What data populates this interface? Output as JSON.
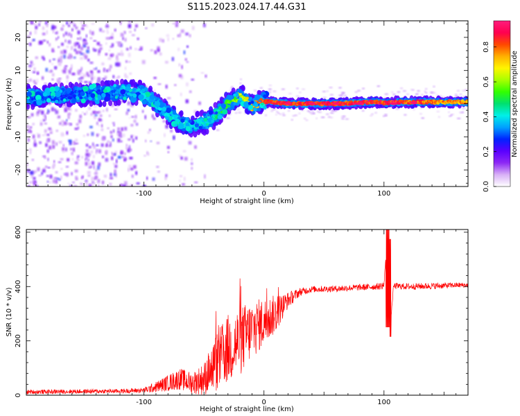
{
  "title": "S115.2023.024.17.44.G31",
  "chart_data": [
    {
      "type": "heatmap",
      "xlabel": "Height of straight line (km)",
      "ylabel": "Frequency (Hz)",
      "xlim": [
        -198,
        170
      ],
      "ylim": [
        -25,
        25
      ],
      "xticks": [
        -100,
        0,
        100
      ],
      "yticks": [
        -20,
        -10,
        0,
        10,
        20
      ],
      "colorbar": {
        "label": "Normalized spectral amplitude",
        "range": [
          0,
          0.95
        ],
        "ticks": [
          0.0,
          0.2,
          0.4,
          0.6,
          0.8
        ],
        "colormap": [
          "#ffffff",
          "#d8b0f6",
          "#8d28f5",
          "#5a00ff",
          "#0023ff",
          "#00a0ff",
          "#00f0e8",
          "#00e070",
          "#32ff00",
          "#a8ff00",
          "#fff500",
          "#ffb000",
          "#ff4800",
          "#ff0050",
          "#ff1d7c"
        ]
      },
      "ridge": {
        "x": [
          -198,
          -170,
          -140,
          -115,
          -100,
          -90,
          -80,
          -70,
          -62,
          -55,
          -48,
          -42,
          -36,
          -30,
          -25,
          -20,
          -15,
          -10,
          -5,
          0,
          5,
          10,
          20,
          40,
          60,
          80,
          95,
          100,
          110,
          130,
          150,
          170
        ],
        "freq": [
          2,
          2.5,
          3,
          3.5,
          3,
          0,
          -3,
          -5.5,
          -7,
          -6,
          -5.5,
          -4,
          -2,
          0,
          1,
          2.5,
          1,
          -1,
          0,
          0.5,
          0.7,
          0.3,
          0,
          0,
          0,
          0.3,
          0.5,
          0.2,
          0.5,
          0.5,
          0.5,
          0.5
        ],
        "amplitude": [
          0.3,
          0.3,
          0.3,
          0.35,
          0.4,
          0.4,
          0.42,
          0.43,
          0.42,
          0.4,
          0.42,
          0.45,
          0.5,
          0.55,
          0.6,
          0.65,
          0.7,
          0.75,
          0.8,
          0.9,
          0.9,
          0.9,
          0.9,
          0.9,
          0.9,
          0.9,
          0.9,
          0.9,
          0.9,
          0.85,
          0.8,
          0.8
        ]
      },
      "bright_spots": [
        {
          "x": 20,
          "freq": 0
        },
        {
          "x": 40,
          "freq": 0
        },
        {
          "x": 60,
          "freq": 0
        },
        {
          "x": 80,
          "freq": 0
        },
        {
          "x": 108,
          "freq": 0
        },
        {
          "x": 125,
          "freq": 0.3
        }
      ]
    },
    {
      "type": "line",
      "xlabel": "Height of straight line (km)",
      "ylabel": "SNR (10 * v/v)",
      "xlim": [
        -198,
        170
      ],
      "ylim": [
        0,
        610
      ],
      "xticks": [
        -100,
        0,
        100
      ],
      "yticks": [
        0,
        200,
        400,
        600
      ],
      "color": "#ff0000",
      "series": [
        {
          "x": [
            -198,
            -150,
            -120,
            -100,
            -90,
            -80,
            -70,
            -60,
            -50,
            -40,
            -30,
            -20,
            -10,
            0,
            10,
            20,
            30,
            40,
            60,
            80,
            95,
            100,
            103,
            105,
            108,
            120,
            140,
            160,
            170
          ],
          "values": [
            12,
            14,
            15,
            18,
            30,
            45,
            60,
            45,
            60,
            120,
            170,
            200,
            240,
            270,
            300,
            350,
            380,
            390,
            392,
            397,
            400,
            405,
            610,
            240,
            402,
            400,
            402,
            405,
            405
          ],
          "spread": [
            8,
            8,
            8,
            10,
            20,
            30,
            40,
            40,
            60,
            110,
            130,
            130,
            110,
            90,
            70,
            30,
            15,
            12,
            12,
            12,
            12,
            15,
            0,
            0,
            12,
            12,
            12,
            10,
            10
          ]
        }
      ]
    }
  ]
}
